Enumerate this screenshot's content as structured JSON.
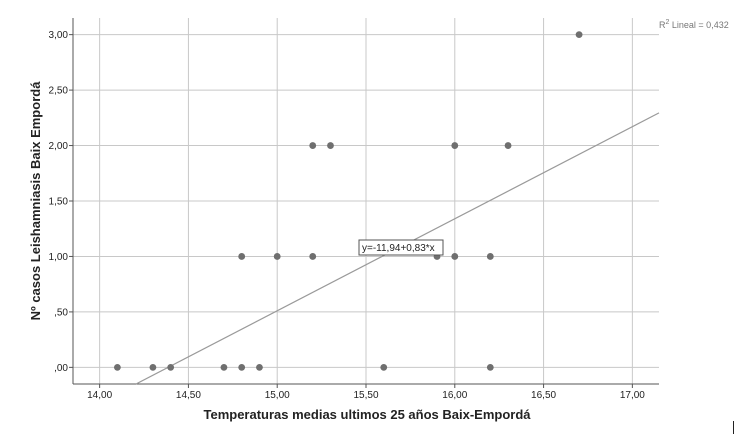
{
  "chart_data": {
    "type": "scatter",
    "xlabel": "Temperaturas medias ultimos 25 años Baix-Empordá",
    "ylabel": "Nº casos Leishamniasis Baix Empordá",
    "xlim": [
      13.85,
      17.15
    ],
    "ylim": [
      -0.15,
      3.15
    ],
    "x_ticks": [
      14.0,
      14.5,
      15.0,
      15.5,
      16.0,
      16.5,
      17.0
    ],
    "x_tick_labels": [
      "14,00",
      "14,50",
      "15,00",
      "15,50",
      "16,00",
      "16,50",
      "17,00"
    ],
    "y_ticks": [
      0,
      0.5,
      1.0,
      1.5,
      2.0,
      2.5,
      3.0
    ],
    "y_tick_labels": [
      ",00",
      ",50",
      "1,00",
      "1,50",
      "2,00",
      "2,50",
      "3,00"
    ],
    "grid": true,
    "points": [
      {
        "x": 14.1,
        "y": 0
      },
      {
        "x": 14.3,
        "y": 0
      },
      {
        "x": 14.4,
        "y": 0
      },
      {
        "x": 14.7,
        "y": 0
      },
      {
        "x": 14.8,
        "y": 0
      },
      {
        "x": 14.9,
        "y": 0
      },
      {
        "x": 15.6,
        "y": 0
      },
      {
        "x": 16.2,
        "y": 0
      },
      {
        "x": 14.8,
        "y": 1
      },
      {
        "x": 15.0,
        "y": 1
      },
      {
        "x": 15.2,
        "y": 1
      },
      {
        "x": 15.9,
        "y": 1
      },
      {
        "x": 16.0,
        "y": 1
      },
      {
        "x": 16.2,
        "y": 1
      },
      {
        "x": 15.2,
        "y": 2
      },
      {
        "x": 15.3,
        "y": 2
      },
      {
        "x": 16.0,
        "y": 2
      },
      {
        "x": 16.3,
        "y": 2
      },
      {
        "x": 16.7,
        "y": 3
      }
    ],
    "fit_line": {
      "intercept": -11.94,
      "slope": 0.83,
      "equation_label": "y=-11,94+0,83*x"
    },
    "r2_label": {
      "prefix": "R",
      "sup": "2",
      "text": " Lineal = 0,432"
    }
  },
  "colors": {
    "point": "#6f6f6f",
    "fit_line": "#9a9a9a",
    "grid": "#c8c8c8",
    "axis": "#555555"
  }
}
